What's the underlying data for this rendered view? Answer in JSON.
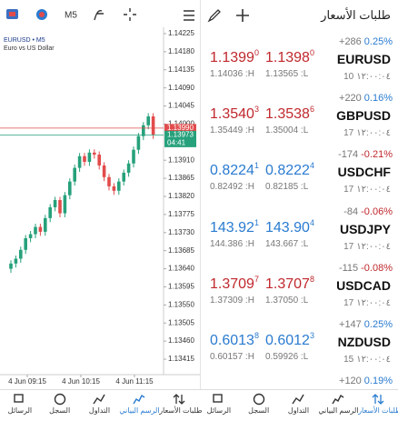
{
  "toolbar": {
    "timeframe": "M5"
  },
  "chart": {
    "symbol": "EURUSD • M5",
    "description": "Euro vs US Dollar",
    "ylim": [
      1.1338,
      1.1426
    ],
    "yticks": [
      1.14225,
      {
        "value": 1.1418,
        "label": "1.14180"
      },
      1.14135,
      {
        "value": 1.1409,
        "label": "1.14090"
      },
      1.14045,
      {
        "value": 1.14,
        "label": "1.14000"
      },
      {
        "value": 1.1391,
        "label": "1.13910"
      },
      1.13865,
      {
        "value": 1.1382,
        "label": "1.13820"
      },
      1.13775,
      {
        "value": 1.1373,
        "label": "1.13730"
      },
      1.13685,
      {
        "value": 1.1364,
        "label": "1.13640"
      },
      1.13595,
      {
        "value": 1.1355,
        "label": "1.13550"
      },
      1.13505,
      {
        "value": 1.1346,
        "label": "1.13460"
      },
      1.13415
    ],
    "xticks": [
      "4 Jun 09:15",
      "4 Jun 10:15",
      "4 Jun 11:15"
    ],
    "ask": {
      "value": 1.1399,
      "label": "1.13990"
    },
    "bid": 1.13973,
    "countdown": "04:41",
    "candles": [
      [
        1.1364,
        1.13661,
        1.1363,
        1.13653
      ],
      [
        1.13653,
        1.13673,
        1.13643,
        1.13665
      ],
      [
        1.13665,
        1.13695,
        1.13655,
        1.13687
      ],
      [
        1.13687,
        1.13724,
        1.13677,
        1.13716
      ],
      [
        1.13716,
        1.13734,
        1.13706,
        1.13726
      ],
      [
        1.13726,
        1.13752,
        1.13716,
        1.13744
      ],
      [
        1.13744,
        1.13752,
        1.13722,
        1.13732
      ],
      [
        1.13732,
        1.13774,
        1.13722,
        1.13766
      ],
      [
        1.13766,
        1.13801,
        1.13756,
        1.13793
      ],
      [
        1.13793,
        1.13819,
        1.13783,
        1.13811
      ],
      [
        1.13811,
        1.13819,
        1.13768,
        1.13778
      ],
      [
        1.13778,
        1.13831,
        1.13768,
        1.13823
      ],
      [
        1.13823,
        1.13865,
        1.13813,
        1.13857
      ],
      [
        1.13857,
        1.13899,
        1.13847,
        1.13891
      ],
      [
        1.13891,
        1.13928,
        1.13881,
        1.1392
      ],
      [
        1.1392,
        1.13928,
        1.13896,
        1.13906
      ],
      [
        1.13906,
        1.13937,
        1.13896,
        1.13929
      ],
      [
        1.13929,
        1.13937,
        1.13914,
        1.13924
      ],
      [
        1.13924,
        1.13932,
        1.13887,
        1.13897
      ],
      [
        1.13897,
        1.13905,
        1.13858,
        1.13868
      ],
      [
        1.13868,
        1.13876,
        1.13835,
        1.13845
      ],
      [
        1.13845,
        1.13853,
        1.13824,
        1.13834
      ],
      [
        1.13834,
        1.13865,
        1.13824,
        1.13857
      ],
      [
        1.13857,
        1.13887,
        1.13847,
        1.13879
      ],
      [
        1.13879,
        1.1391,
        1.13869,
        1.13902
      ],
      [
        1.13902,
        1.13944,
        1.13892,
        1.13936
      ],
      [
        1.13936,
        1.13978,
        1.13926,
        1.1397
      ],
      [
        1.1397,
        1.14005,
        1.1396,
        1.13997
      ],
      [
        1.13997,
        1.14027,
        1.13987,
        1.14019
      ],
      [
        1.14019,
        1.14027,
        1.13963,
        1.13973
      ]
    ]
  },
  "quotes": {
    "title": "طلبات الأسعار",
    "rows": [
      {
        "symbol": "EURUSD",
        "change": "+286",
        "percent": "0.25%",
        "bid": "1.1399",
        "bid_sup": "0",
        "ask": "1.1398",
        "ask_sup": "0",
        "high": "1.14036 :H",
        "low": "1.13565 :L",
        "spread": "10",
        "time": "١٢:٠٠:٠٤",
        "color": "#c0282d",
        "percent_color": "#2a7bd0"
      },
      {
        "symbol": "GBPUSD",
        "change": "+220",
        "percent": "0.16%",
        "bid": "1.3540",
        "bid_sup": "3",
        "ask": "1.3538",
        "ask_sup": "6",
        "high": "1.35449 :H",
        "low": "1.35004 :L",
        "spread": "17",
        "time": "١٢:٠٠:٠٤",
        "color": "#c0282d",
        "percent_color": "#2a7bd0"
      },
      {
        "symbol": "USDCHF",
        "change": "-174",
        "percent": "-0.21%",
        "bid": "0.8224",
        "bid_sup": "1",
        "ask": "0.8222",
        "ask_sup": "4",
        "high": "0.82492 :H",
        "low": "0.82185 :L",
        "spread": "17",
        "time": "١٢:٠٠:٠٤",
        "color": "#2a7bd0",
        "percent_color": "#c0282d"
      },
      {
        "symbol": "USDJPY",
        "change": "-84",
        "percent": "-0.06%",
        "bid": "143.92",
        "bid_sup": "1",
        "ask": "143.90",
        "ask_sup": "4",
        "high": "144.386 :H",
        "low": "143.667 :L",
        "spread": "17",
        "time": "١٢:٠٠:٠٤",
        "color": "#2a7bd0",
        "percent_color": "#c0282d"
      },
      {
        "symbol": "USDCAD",
        "change": "-115",
        "percent": "-0.08%",
        "bid": "1.3709",
        "bid_sup": "7",
        "ask": "1.3707",
        "ask_sup": "8",
        "high": "1.37309 :H",
        "low": "1.37050 :L",
        "spread": "17",
        "time": "١٢:٠٠:٠٤",
        "color": "#c0282d",
        "percent_color": "#c0282d"
      },
      {
        "symbol": "NZDUSD",
        "change": "+147",
        "percent": "0.25%",
        "bid": "0.6013",
        "bid_sup": "8",
        "ask": "0.6012",
        "ask_sup": "3",
        "high": "0.60157 :H",
        "low": "0.59926 :L",
        "spread": "15",
        "time": "١٢:٠٠:٠٤",
        "color": "#2a7bd0",
        "percent_color": "#2a7bd0"
      },
      {
        "change": "+120",
        "percent": "0.19%",
        "percent_color": "#2a7bd0"
      }
    ]
  },
  "nav": {
    "tabs": [
      "الرسائل",
      "السجل",
      "التداول",
      "الرسم البياني",
      "طلبات الأسعار"
    ]
  }
}
